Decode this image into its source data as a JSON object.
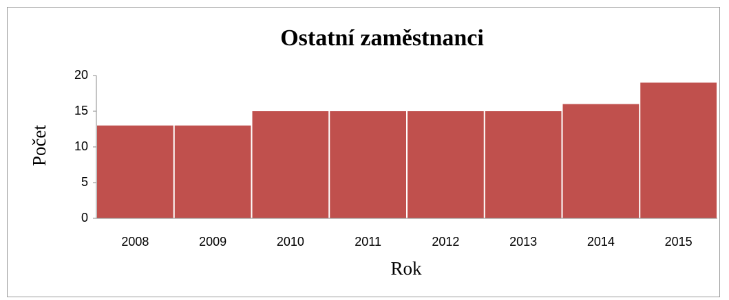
{
  "chart_data": {
    "type": "bar",
    "title": "Ostatní zaměstnanci",
    "x_label": "Rok",
    "y_label": "Počet",
    "categories": [
      "2008",
      "2009",
      "2010",
      "2011",
      "2012",
      "2013",
      "2014",
      "2015"
    ],
    "values": [
      13,
      13,
      15,
      15,
      15,
      15,
      16,
      19
    ],
    "color": "#c0504d",
    "ylim": [
      0,
      20
    ],
    "yticks": [
      0,
      5,
      10,
      15,
      20
    ],
    "grid": false
  }
}
